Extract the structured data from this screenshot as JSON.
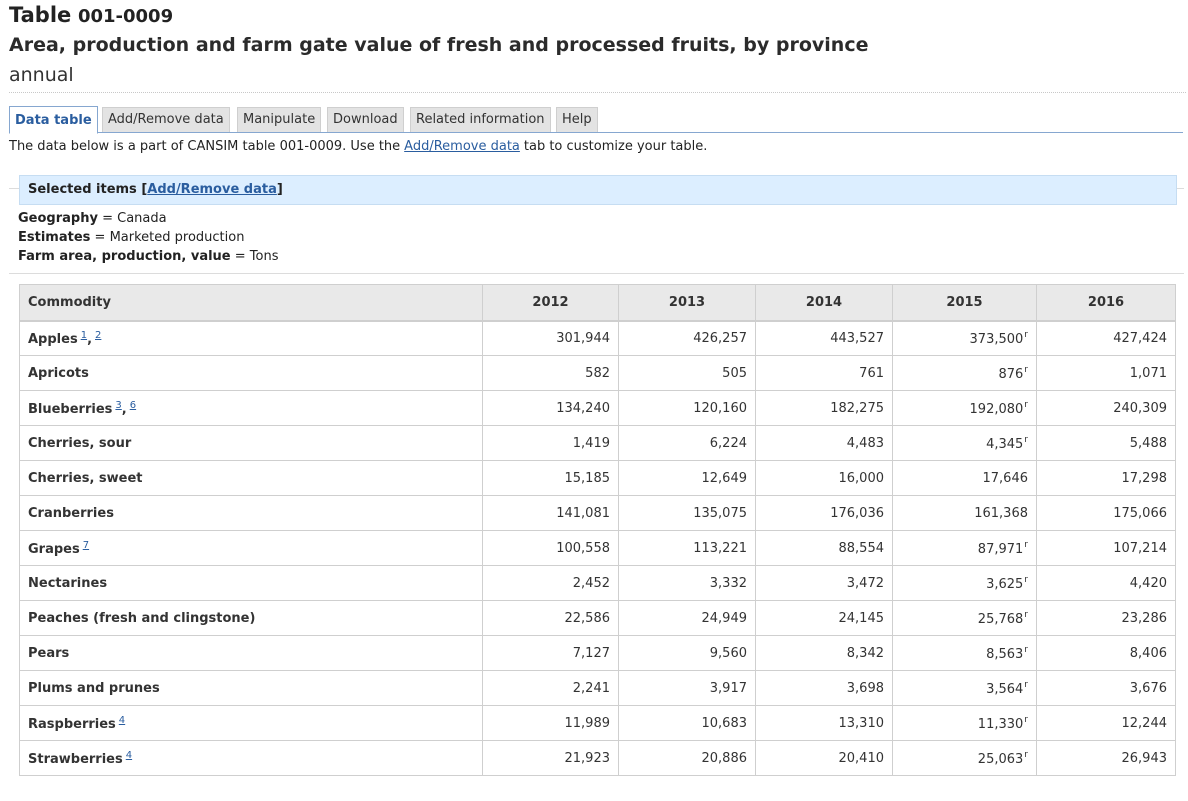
{
  "header": {
    "table_word": "Table",
    "table_id": "001-0009",
    "subtitle": "Area, production and farm gate value of fresh and processed fruits, by province",
    "frequency": "annual"
  },
  "tabs": [
    {
      "label": "Data table",
      "active": true
    },
    {
      "label": "Add/Remove data",
      "active": false
    },
    {
      "label": "Manipulate",
      "active": false
    },
    {
      "label": "Download",
      "active": false
    },
    {
      "label": "Related information",
      "active": false
    },
    {
      "label": "Help",
      "active": false
    }
  ],
  "intro": {
    "before": "The data below is a part of CANSIM table  001-0009.  Use the",
    "link": "Add/Remove data",
    "after": "tab to customize your table."
  },
  "selected": {
    "label": "Selected items",
    "link": "Add/Remove data",
    "criteria": [
      {
        "key": "Geography",
        "value": "Canada"
      },
      {
        "key": "Estimates",
        "value": "Marketed production"
      },
      {
        "key": "Farm area, production, value",
        "value": "Tons"
      }
    ]
  },
  "table": {
    "commodity_header": "Commodity",
    "years": [
      "2012",
      "2013",
      "2014",
      "2015",
      "2016"
    ],
    "revised_flag": "r",
    "rows": [
      {
        "name": "Apples",
        "footnotes": [
          "1",
          "2"
        ],
        "values": [
          "301,944",
          "426,257",
          "443,527",
          "373,500",
          "427,424"
        ],
        "revised": [
          false,
          false,
          false,
          true,
          false
        ]
      },
      {
        "name": "Apricots",
        "footnotes": [],
        "values": [
          "582",
          "505",
          "761",
          "876",
          "1,071"
        ],
        "revised": [
          false,
          false,
          false,
          true,
          false
        ]
      },
      {
        "name": "Blueberries",
        "footnotes": [
          "3",
          "6"
        ],
        "values": [
          "134,240",
          "120,160",
          "182,275",
          "192,080",
          "240,309"
        ],
        "revised": [
          false,
          false,
          false,
          true,
          false
        ]
      },
      {
        "name": "Cherries, sour",
        "footnotes": [],
        "values": [
          "1,419",
          "6,224",
          "4,483",
          "4,345",
          "5,488"
        ],
        "revised": [
          false,
          false,
          false,
          true,
          false
        ]
      },
      {
        "name": "Cherries, sweet",
        "footnotes": [],
        "values": [
          "15,185",
          "12,649",
          "16,000",
          "17,646",
          "17,298"
        ],
        "revised": [
          false,
          false,
          false,
          false,
          false
        ]
      },
      {
        "name": "Cranberries",
        "footnotes": [],
        "values": [
          "141,081",
          "135,075",
          "176,036",
          "161,368",
          "175,066"
        ],
        "revised": [
          false,
          false,
          false,
          false,
          false
        ]
      },
      {
        "name": "Grapes",
        "footnotes": [
          "7"
        ],
        "values": [
          "100,558",
          "113,221",
          "88,554",
          "87,971",
          "107,214"
        ],
        "revised": [
          false,
          false,
          false,
          true,
          false
        ]
      },
      {
        "name": "Nectarines",
        "footnotes": [],
        "values": [
          "2,452",
          "3,332",
          "3,472",
          "3,625",
          "4,420"
        ],
        "revised": [
          false,
          false,
          false,
          true,
          false
        ]
      },
      {
        "name": "Peaches (fresh and clingstone)",
        "footnotes": [],
        "values": [
          "22,586",
          "24,949",
          "24,145",
          "25,768",
          "23,286"
        ],
        "revised": [
          false,
          false,
          false,
          true,
          false
        ]
      },
      {
        "name": "Pears",
        "footnotes": [],
        "values": [
          "7,127",
          "9,560",
          "8,342",
          "8,563",
          "8,406"
        ],
        "revised": [
          false,
          false,
          false,
          true,
          false
        ]
      },
      {
        "name": "Plums and prunes",
        "footnotes": [],
        "values": [
          "2,241",
          "3,917",
          "3,698",
          "3,564",
          "3,676"
        ],
        "revised": [
          false,
          false,
          false,
          true,
          false
        ]
      },
      {
        "name": "Raspberries",
        "footnotes": [
          "4"
        ],
        "values": [
          "11,989",
          "10,683",
          "13,310",
          "11,330",
          "12,244"
        ],
        "revised": [
          false,
          false,
          false,
          true,
          false
        ]
      },
      {
        "name": "Strawberries",
        "footnotes": [
          "4"
        ],
        "values": [
          "21,923",
          "20,886",
          "20,410",
          "25,063",
          "26,943"
        ],
        "revised": [
          false,
          false,
          false,
          true,
          false
        ]
      }
    ]
  }
}
